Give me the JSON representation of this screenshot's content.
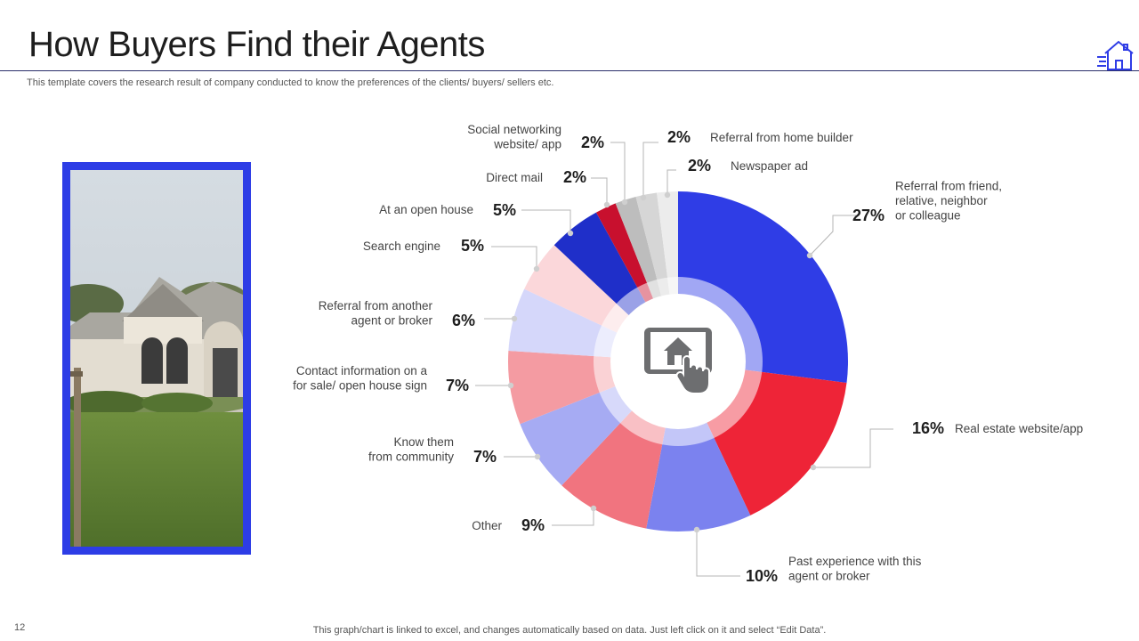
{
  "slide": {
    "title": "How Buyers Find their Agents",
    "subtitle": "This template covers the research result of company conducted to know the preferences of the clients/ buyers/ sellers etc.",
    "footer": "This graph/chart is linked to excel,  and changes automatically based on data. Just left click on it and select “Edit Data”.",
    "page_number": "12"
  },
  "chart_data": {
    "type": "pie",
    "subtype": "donut",
    "center_icon": "tablet-house-touch-icon",
    "slices": [
      {
        "label": [
          "Referral from friend,",
          "relative, neighbor",
          "or colleague"
        ],
        "value": 27,
        "display": "27%",
        "color": "#2f3de6"
      },
      {
        "label": [
          "Real estate website/app"
        ],
        "value": 16,
        "display": "16%",
        "color": "#ee2437"
      },
      {
        "label": [
          "Past experience with this",
          "agent or broker"
        ],
        "value": 10,
        "display": "10%",
        "color": "#7b82ef"
      },
      {
        "label": [
          "Other"
        ],
        "value": 9,
        "display": "9%",
        "color": "#f1747f"
      },
      {
        "label": [
          "Know them",
          "from community"
        ],
        "value": 7,
        "display": "7%",
        "color": "#a6abf3"
      },
      {
        "label": [
          "Contact information on a",
          "for sale/ open house sign"
        ],
        "value": 7,
        "display": "7%",
        "color": "#f49ba2"
      },
      {
        "label": [
          "Referral from another",
          "agent or broker"
        ],
        "value": 6,
        "display": "6%",
        "color": "#d5d7fa"
      },
      {
        "label": [
          "Search engine"
        ],
        "value": 5,
        "display": "5%",
        "color": "#fbd7da"
      },
      {
        "label": [
          "At an open house"
        ],
        "value": 5,
        "display": "5%",
        "color": "#1f2fc9"
      },
      {
        "label": [
          "Direct mail"
        ],
        "value": 2,
        "display": "2%",
        "color": "#c8102e"
      },
      {
        "label": [
          "Social networking",
          "website/ app"
        ],
        "value": 2,
        "display": "2%",
        "color": "#bdbdbd"
      },
      {
        "label": [
          "Referral from home builder"
        ],
        "value": 2,
        "display": "2%",
        "color": "#d6d6d6"
      },
      {
        "label": [
          "Newspaper ad"
        ],
        "value": 2,
        "display": "2%",
        "color": "#ececec"
      }
    ]
  }
}
